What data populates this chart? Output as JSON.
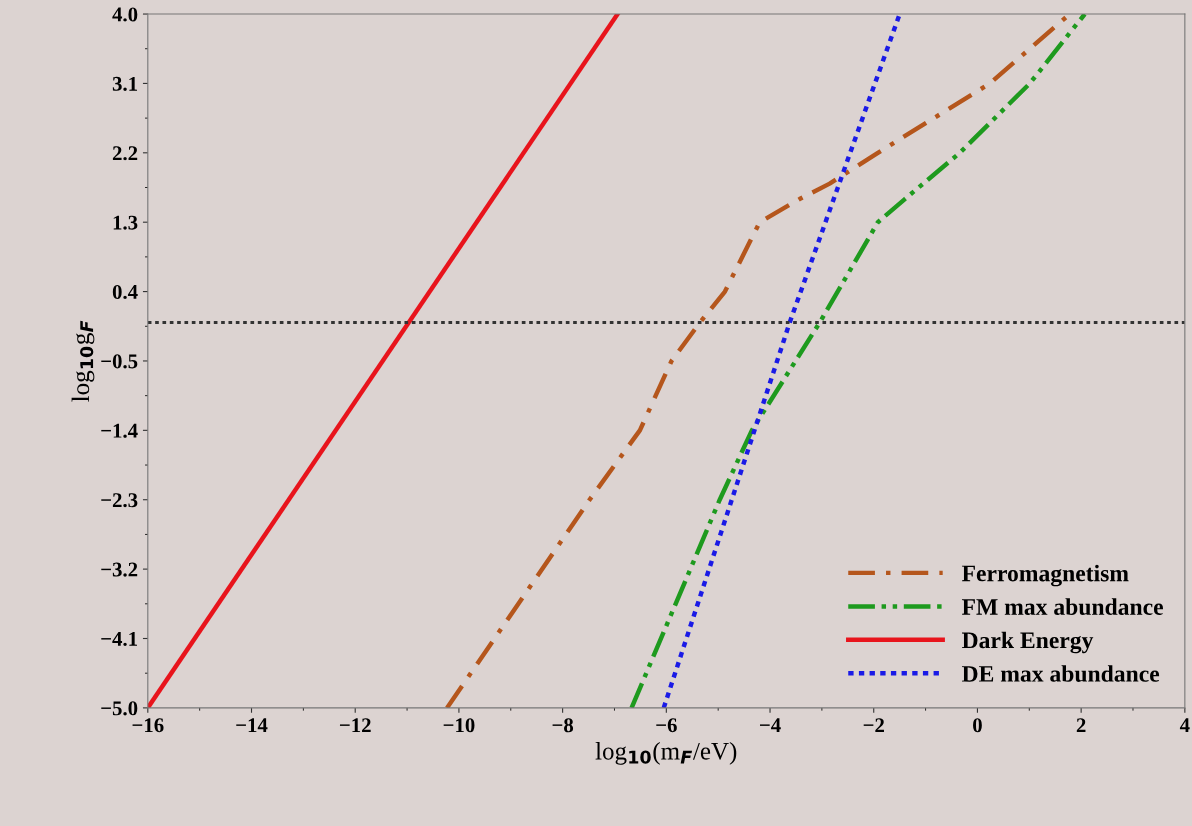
{
  "chart_data": {
    "type": "line",
    "xlabel": "log$_{10}$(m$_{F}$/eV)",
    "ylabel": "log$_{10}$g$_{F}$",
    "xlim": [
      -16,
      4
    ],
    "ylim": [
      -5.0,
      4.0
    ],
    "xticks": [
      -16,
      -14,
      -12,
      -10,
      -8,
      -6,
      -4,
      -2,
      0,
      2,
      4
    ],
    "yticks": [
      {
        "value": -5.0,
        "label": "−5.0"
      },
      {
        "value": -4.1,
        "label": "−4.1"
      },
      {
        "value": -3.2,
        "label": "−3.2"
      },
      {
        "value": -2.3,
        "label": "−2.3"
      },
      {
        "value": -1.4,
        "label": "−1.4"
      },
      {
        "value": -0.5,
        "label": "−0.5"
      },
      {
        "value": 0.4,
        "label": "0.4"
      },
      {
        "value": 1.3,
        "label": "1.3"
      },
      {
        "value": 2.2,
        "label": "2.2"
      },
      {
        "value": 3.1,
        "label": "3.1"
      },
      {
        "value": 4.0,
        "label": "4.0"
      }
    ],
    "grid": false,
    "legend": "lower right",
    "ref_lines": [
      {
        "axis": "y",
        "value": 0,
        "color": "#333333",
        "line_style": "dotted"
      }
    ],
    "series": [
      {
        "name": "Ferromagnetism",
        "color": "#b5561c",
        "line_style": "dashdot",
        "x": [
          -10.23,
          -7.48,
          -6.51,
          -5.9,
          -5.35,
          -4.87,
          -4.2,
          -3.43,
          -2.85,
          -1.92,
          0.24,
          1.78
        ],
        "values": [
          -5.0,
          -2.3,
          -1.4,
          -0.5,
          0.0,
          0.4,
          1.3,
          1.6,
          1.8,
          2.2,
          3.1,
          4.0
        ]
      },
      {
        "name": "FM max abundance",
        "color": "#1e9a1e",
        "line_style": "dashdotdot",
        "x": [
          -6.67,
          -4.97,
          -4.35,
          -3.04,
          -1.92,
          -1.4,
          -0.34,
          1.01,
          2.07
        ],
        "values": [
          -5.0,
          -2.3,
          -1.4,
          0.0,
          1.3,
          1.6,
          2.2,
          3.1,
          4.0
        ]
      },
      {
        "name": "Dark Energy",
        "color": "#e8141c",
        "line_style": "solid",
        "x": [
          -16.0,
          -6.94
        ],
        "values": [
          -5.0,
          4.0
        ]
      },
      {
        "name": "DE max abundance",
        "color": "#1a1ae6",
        "line_style": "dotted",
        "x": [
          -6.05,
          -3.62,
          -1.5
        ],
        "values": [
          -5.0,
          0.0,
          4.0
        ]
      }
    ]
  }
}
